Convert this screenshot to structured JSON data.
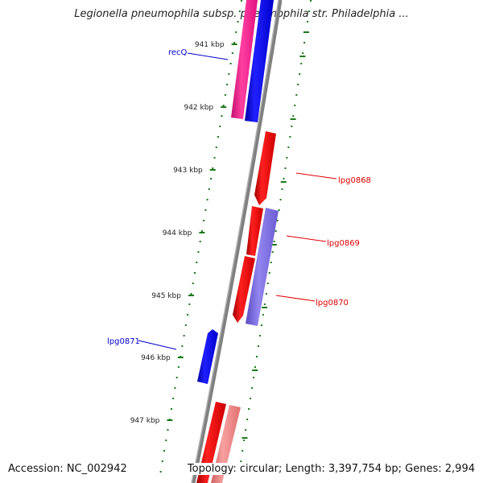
{
  "title": "Legionella pneumophila subsp. pneumophila str. Philadelphia ...",
  "footer": {
    "accession": "Accession: NC_002942",
    "topology": "Topology: circular; Length: 3,397,754 bp; Genes: 2,994"
  },
  "ticks": [
    "941 kbp",
    "942 kbp",
    "943 kbp",
    "944 kbp",
    "945 kbp",
    "946 kbp",
    "947 kbp"
  ],
  "genes": [
    {
      "label": "recQ",
      "color": "#0000cc"
    },
    {
      "label": "lpg0868",
      "color": "#dd0000"
    },
    {
      "label": "lpg0869",
      "color": "#dd0000"
    },
    {
      "label": "lpg0870",
      "color": "#dd0000"
    },
    {
      "label": "lpg0871",
      "color": "#0000cc"
    }
  ],
  "colors": {
    "backbone": "#808080",
    "ticks": "#1a7a1a",
    "forward_cds": "#ff0000",
    "forward_light": "#f08080",
    "reverse_cds": "#0000ff",
    "reverse_light": "#7b68ee",
    "magenta": "#ff1493"
  }
}
